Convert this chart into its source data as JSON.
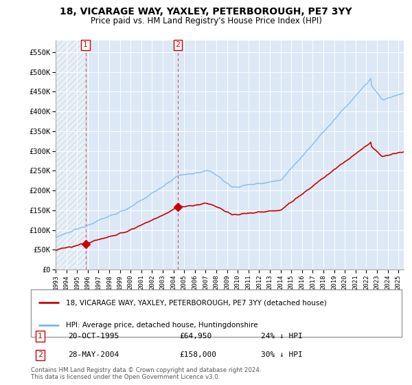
{
  "title": "18, VICARAGE WAY, YAXLEY, PETERBOROUGH, PE7 3YY",
  "subtitle": "Price paid vs. HM Land Registry's House Price Index (HPI)",
  "sale1_date": "20-OCT-1995",
  "sale1_price": 64950,
  "sale1_year": 1995.79,
  "sale2_date": "28-MAY-2004",
  "sale2_price": 158000,
  "sale2_year": 2004.41,
  "legend_line1": "18, VICARAGE WAY, YAXLEY, PETERBOROUGH, PE7 3YY (detached house)",
  "legend_line2": "HPI: Average price, detached house, Huntingdonshire",
  "footnote": "Contains HM Land Registry data © Crown copyright and database right 2024.\nThis data is licensed under the Open Government Licence v3.0.",
  "sale_color": "#cc0000",
  "hpi_color": "#7ab8e8",
  "ylim": [
    0,
    580000
  ],
  "yticks": [
    0,
    50000,
    100000,
    150000,
    200000,
    250000,
    300000,
    350000,
    400000,
    450000,
    500000,
    550000
  ],
  "ytick_labels": [
    "£0",
    "£50K",
    "£100K",
    "£150K",
    "£200K",
    "£250K",
    "£300K",
    "£350K",
    "£400K",
    "£450K",
    "£500K",
    "£550K"
  ],
  "background_color": "#ffffff",
  "plot_bg_color": "#dce8f5"
}
